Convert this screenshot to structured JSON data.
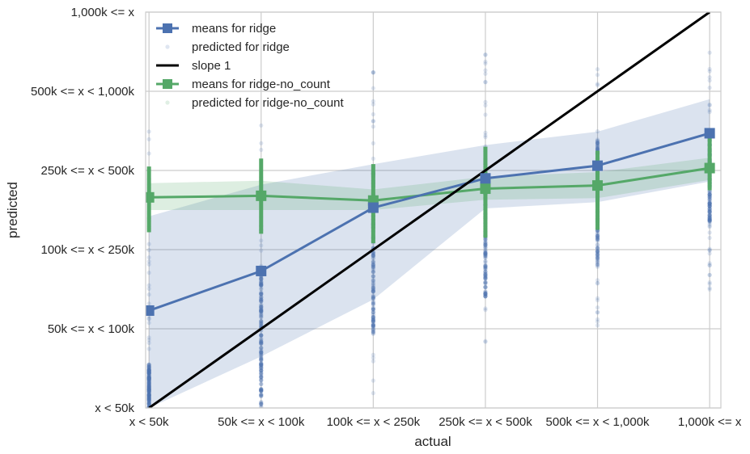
{
  "chart_data": {
    "type": "line",
    "title": "",
    "xlabel": "actual",
    "ylabel": "predicted",
    "x_categories": [
      "x < 50k",
      "50k <= x < 100k",
      "100k <= x < 250k",
      "250k <= x < 500k",
      "500k <= x < 1,000k",
      "1,000k <= x"
    ],
    "y_categories": [
      "x < 50k",
      "50k <= x < 100k",
      "100k <= x < 250k",
      "250k <= x < 500k",
      "500k <= x < 1,000k",
      "1,000k <= x"
    ],
    "xlim": [
      -0.03,
      5.1
    ],
    "ylim": [
      0,
      5
    ],
    "grid": true,
    "legend_position": "top-left",
    "colors": {
      "ridge": "#4c72b0",
      "ridge_no_count": "#55a868",
      "slope": "#000000",
      "grid": "#cccccc",
      "frame": "#cccccc"
    },
    "series": [
      {
        "name": "means for ridge",
        "color": "#4c72b0",
        "x": [
          0,
          1,
          2,
          3,
          4,
          5
        ],
        "y": [
          1.23,
          1.73,
          2.53,
          2.9,
          3.06,
          3.47
        ],
        "ci_lower": [
          0,
          0.65,
          1.37,
          2.52,
          2.6,
          2.86
        ],
        "ci_upper": [
          2.42,
          2.82,
          3.08,
          3.32,
          3.49,
          3.9
        ],
        "points": {
          "label": "predicted for ridge",
          "dense_range": [
            [
              0,
              0.55
            ],
            [
              0,
              1.75
            ],
            [
              0.93,
              3.0
            ],
            [
              1.4,
              3.15
            ],
            [
              1.8,
              3.4
            ],
            [
              2.35,
              3.5
            ]
          ],
          "sparse_range": [
            [
              0,
              3.5
            ],
            [
              0,
              3.6
            ],
            [
              0.05,
              4.4
            ],
            [
              0.8,
              4.5
            ],
            [
              1.0,
              4.5
            ],
            [
              1.45,
              4.5
            ]
          ]
        }
      },
      {
        "name": "means for ridge-no_count",
        "color": "#55a868",
        "x": [
          0,
          1,
          2,
          3,
          4,
          5
        ],
        "y": [
          2.66,
          2.68,
          2.62,
          2.77,
          2.81,
          3.03
        ],
        "ci_lower": [
          2.5,
          2.5,
          2.5,
          2.63,
          2.65,
          2.88
        ],
        "ci_upper": [
          2.84,
          2.87,
          2.76,
          2.92,
          2.98,
          3.16
        ],
        "errbar": [
          [
            2.22,
            3.05
          ],
          [
            2.2,
            3.15
          ],
          [
            2.08,
            3.08
          ],
          [
            2.15,
            3.3
          ],
          [
            2.25,
            3.25
          ],
          [
            2.75,
            3.45
          ]
        ],
        "points": {
          "label": "predicted for ridge-no_count"
        }
      },
      {
        "name": "slope 1",
        "color": "#000000",
        "x": [
          0,
          5
        ],
        "y": [
          0,
          5
        ]
      }
    ],
    "legend": [
      {
        "label": "means for ridge",
        "style": "line-marker",
        "color": "#4c72b0"
      },
      {
        "label": "predicted for ridge",
        "style": "faint-dot",
        "color": "#4c72b0"
      },
      {
        "label": "slope 1",
        "style": "line",
        "color": "#000000"
      },
      {
        "label": "means for ridge-no_count",
        "style": "line-marker",
        "color": "#55a868"
      },
      {
        "label": "predicted for ridge-no_count",
        "style": "faint-dot",
        "color": "#55a868"
      }
    ]
  }
}
